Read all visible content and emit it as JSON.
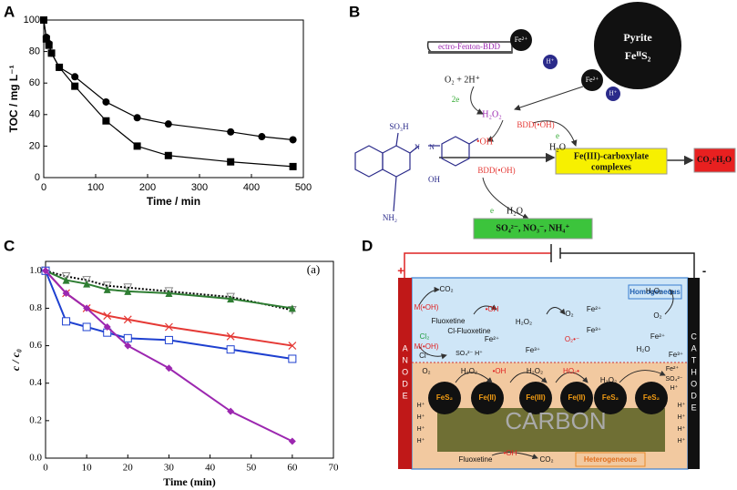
{
  "panels": {
    "a": "A",
    "b": "B",
    "c": "C",
    "d": "D"
  },
  "chart_data": [
    {
      "type": "line",
      "xlabel": "Time / min",
      "ylabel": "TOC / mg L⁻¹",
      "xlim": [
        0,
        500
      ],
      "ylim": [
        0,
        100
      ],
      "xticks": [
        0,
        100,
        200,
        300,
        400,
        500
      ],
      "yticks": [
        0,
        20,
        40,
        60,
        80,
        100
      ],
      "series": [
        {
          "color": "#000000",
          "marker": "circle",
          "x": [
            0,
            5,
            10,
            15,
            30,
            60,
            120,
            180,
            240,
            360,
            420,
            480
          ],
          "values": [
            100,
            89,
            85,
            79,
            70,
            64,
            48,
            38,
            34,
            29,
            26,
            24
          ]
        },
        {
          "color": "#000000",
          "marker": "square",
          "x": [
            0,
            5,
            10,
            15,
            30,
            60,
            120,
            180,
            240,
            360,
            480
          ],
          "values": [
            100,
            88,
            84,
            79,
            70,
            58,
            36,
            20,
            14,
            10,
            7
          ]
        }
      ]
    },
    {
      "type": "line",
      "xlabel": "Time (min)",
      "ylabel": "c / c₀",
      "annotation": "(a)",
      "xlim": [
        0,
        70
      ],
      "ylim": [
        0,
        1.05
      ],
      "xticks": [
        0,
        10,
        20,
        30,
        40,
        50,
        60,
        70
      ],
      "yticks": [
        {
          "value": 0,
          "label": "0.0"
        },
        {
          "value": 0.2,
          "label": "0.2"
        },
        {
          "value": 0.4,
          "label": "0.4"
        },
        {
          "value": 0.6,
          "label": "0.6"
        },
        {
          "value": 0.8,
          "label": "0.8"
        },
        {
          "value": 1,
          "label": "1.0"
        }
      ],
      "series": [
        {
          "color": "#000000",
          "linestyle": "dotted",
          "marker": "open-triangle-down",
          "marker_color": "#888888",
          "x": [
            0,
            5,
            10,
            15,
            20,
            30,
            45,
            60
          ],
          "values": [
            1.0,
            0.97,
            0.95,
            0.92,
            0.91,
            0.89,
            0.86,
            0.79
          ]
        },
        {
          "color": "#2e7d32",
          "marker": "triangle",
          "x": [
            0,
            5,
            10,
            15,
            20,
            30,
            45,
            60
          ],
          "values": [
            1.0,
            0.95,
            0.93,
            0.9,
            0.89,
            0.88,
            0.85,
            0.8
          ]
        },
        {
          "color": "#e53935",
          "marker": "x",
          "x": [
            0,
            5,
            10,
            15,
            20,
            30,
            45,
            60
          ],
          "values": [
            1.0,
            0.88,
            0.8,
            0.76,
            0.74,
            0.7,
            0.65,
            0.6
          ]
        },
        {
          "color": "#1e40d0",
          "marker": "open-square",
          "x": [
            0,
            5,
            10,
            15,
            20,
            30,
            45,
            60
          ],
          "values": [
            1.0,
            0.73,
            0.7,
            0.67,
            0.64,
            0.63,
            0.58,
            0.53
          ]
        },
        {
          "color": "#9c27b0",
          "marker": "diamond",
          "x": [
            0,
            5,
            10,
            15,
            20,
            30,
            45,
            60
          ],
          "values": [
            1.0,
            0.88,
            0.8,
            0.7,
            0.6,
            0.48,
            0.25,
            0.09
          ]
        }
      ]
    }
  ],
  "diagram_b": {
    "labels": [
      "ectro-Fenton-BDD",
      "Pyrite",
      "FeᴵᴵS₂",
      "Fe²⁺",
      "H⁺",
      "Fe²⁺",
      "H⁺",
      "O₂ + 2H⁺",
      "2e",
      "H₂O₂",
      "BDD(•OH)",
      "•OH",
      "H₂O",
      "e",
      "Fe(III)-carboxylate",
      "complexes",
      "CO₂+H₂O",
      "SO₃H",
      "OH",
      "NH₂",
      "BDD(•OH)",
      "H₂O",
      "e",
      "SO₄²⁻, NO₃⁻, NH₄⁺",
      "N",
      "N"
    ]
  },
  "diagram_d": {
    "labels": [
      "+",
      "-",
      "Homogeneous",
      "Heterogeneous",
      "ANODE",
      "CATHODE",
      "CARBON",
      "CO₂",
      "M(•OH)",
      "•OH",
      "Fluoxetine",
      "Cl₂",
      "Cl-Fluoxetine",
      "M(•OH)",
      "Cl⁻",
      "SO₄²⁻ H⁺",
      "Fe²⁺",
      "H₂O₂",
      "Fe³⁺",
      "O₂",
      "Fe²⁺",
      "Fe³⁺",
      "O₂•⁻",
      "H₂O₂",
      "O₂",
      "Fe²⁺",
      "H₂O",
      "Fe³⁺",
      "O₂",
      "H₂O₂",
      "•OH",
      "H₂O₂",
      "HO₂•",
      "H₂O₂",
      "Fe²⁺",
      "SO₄²⁻",
      "H⁺",
      "FeS₂",
      "Fe(II)",
      "Fe(III)",
      "Fe(II)",
      "FeS₂",
      "FeS₂",
      "H⁺",
      "H⁺",
      "H⁺",
      "H⁺",
      "H⁺",
      "H⁺",
      "H⁺",
      "H⁺",
      "Fluoxetine",
      "•OH",
      "CO₂"
    ]
  }
}
